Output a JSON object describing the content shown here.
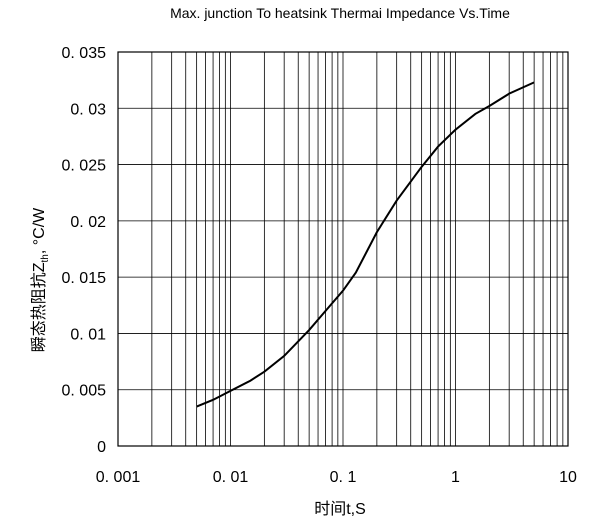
{
  "chart_data": {
    "type": "line",
    "title": "Max. junction To heatsink Thermai Impedance Vs.Time",
    "xlabel": "时间t,S",
    "ylabel_main": "瞬态热阻抗Z",
    "ylabel_sub": "th",
    "ylabel_unit": ", °C/W",
    "x_scale": "log",
    "xlim": [
      0.001,
      10
    ],
    "ylim": [
      0,
      0.035
    ],
    "grid": true,
    "x_ticks": [
      {
        "value": 0.001,
        "label": "0. 001"
      },
      {
        "value": 0.01,
        "label": "0. 01"
      },
      {
        "value": 0.1,
        "label": "0. 1"
      },
      {
        "value": 1,
        "label": "1"
      },
      {
        "value": 10,
        "label": "10"
      }
    ],
    "y_ticks": [
      {
        "value": 0,
        "label": "0"
      },
      {
        "value": 0.005,
        "label": "0. 005"
      },
      {
        "value": 0.01,
        "label": "0. 01"
      },
      {
        "value": 0.015,
        "label": "0. 015"
      },
      {
        "value": 0.02,
        "label": "0. 02"
      },
      {
        "value": 0.025,
        "label": "0. 025"
      },
      {
        "value": 0.03,
        "label": "0. 03"
      },
      {
        "value": 0.035,
        "label": "0. 035"
      }
    ],
    "series": [
      {
        "x": [
          0.005,
          0.007,
          0.01,
          0.015,
          0.02,
          0.03,
          0.05,
          0.07,
          0.1,
          0.13,
          0.2,
          0.3,
          0.5,
          0.7,
          1.0,
          1.5,
          2.0,
          3.0,
          5.0
        ],
        "y": [
          0.0035,
          0.0041,
          0.0049,
          0.0058,
          0.0066,
          0.008,
          0.0103,
          0.012,
          0.0138,
          0.0154,
          0.019,
          0.0218,
          0.0248,
          0.0266,
          0.0281,
          0.0295,
          0.0302,
          0.0313,
          0.0323
        ]
      }
    ]
  }
}
